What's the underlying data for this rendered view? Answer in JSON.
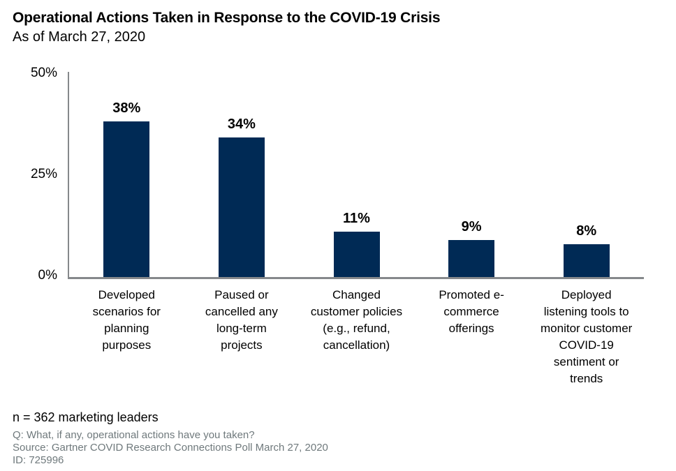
{
  "chart_data": {
    "type": "bar",
    "title": "Operational Actions Taken in Response to the COVID-19 Crisis",
    "subtitle": "As of March 27, 2020",
    "categories": [
      "Developed\nscenarios for\nplanning\npurposes",
      "Paused or\ncancelled any\nlong-term\nprojects",
      "Changed\ncustomer policies\n(e.g., refund,\ncancellation)",
      "Promoted e-\ncommerce\nofferings",
      "Deployed\nlistening tools to\nmonitor customer\nCOVID-19\nsentiment or\ntrends"
    ],
    "values": [
      38,
      34,
      11,
      9,
      8
    ],
    "value_labels": [
      "38%",
      "34%",
      "11%",
      "9%",
      "8%"
    ],
    "xlabel": "",
    "ylabel": "",
    "ylim": [
      0,
      50
    ],
    "ytick_labels": [
      "50%",
      "25%",
      "0%"
    ],
    "grid": false,
    "legend": "none",
    "bar_color": "#002a55",
    "axis_color": "#85888b",
    "value_label_color": "#000000"
  },
  "footer": {
    "sample_note": "n = 362 marketing leaders",
    "question": "Q: What, if any, operational actions have you taken?",
    "source": "Source: Gartner COVID Research Connections Poll March 27, 2020",
    "id_note": "ID: 725996"
  }
}
